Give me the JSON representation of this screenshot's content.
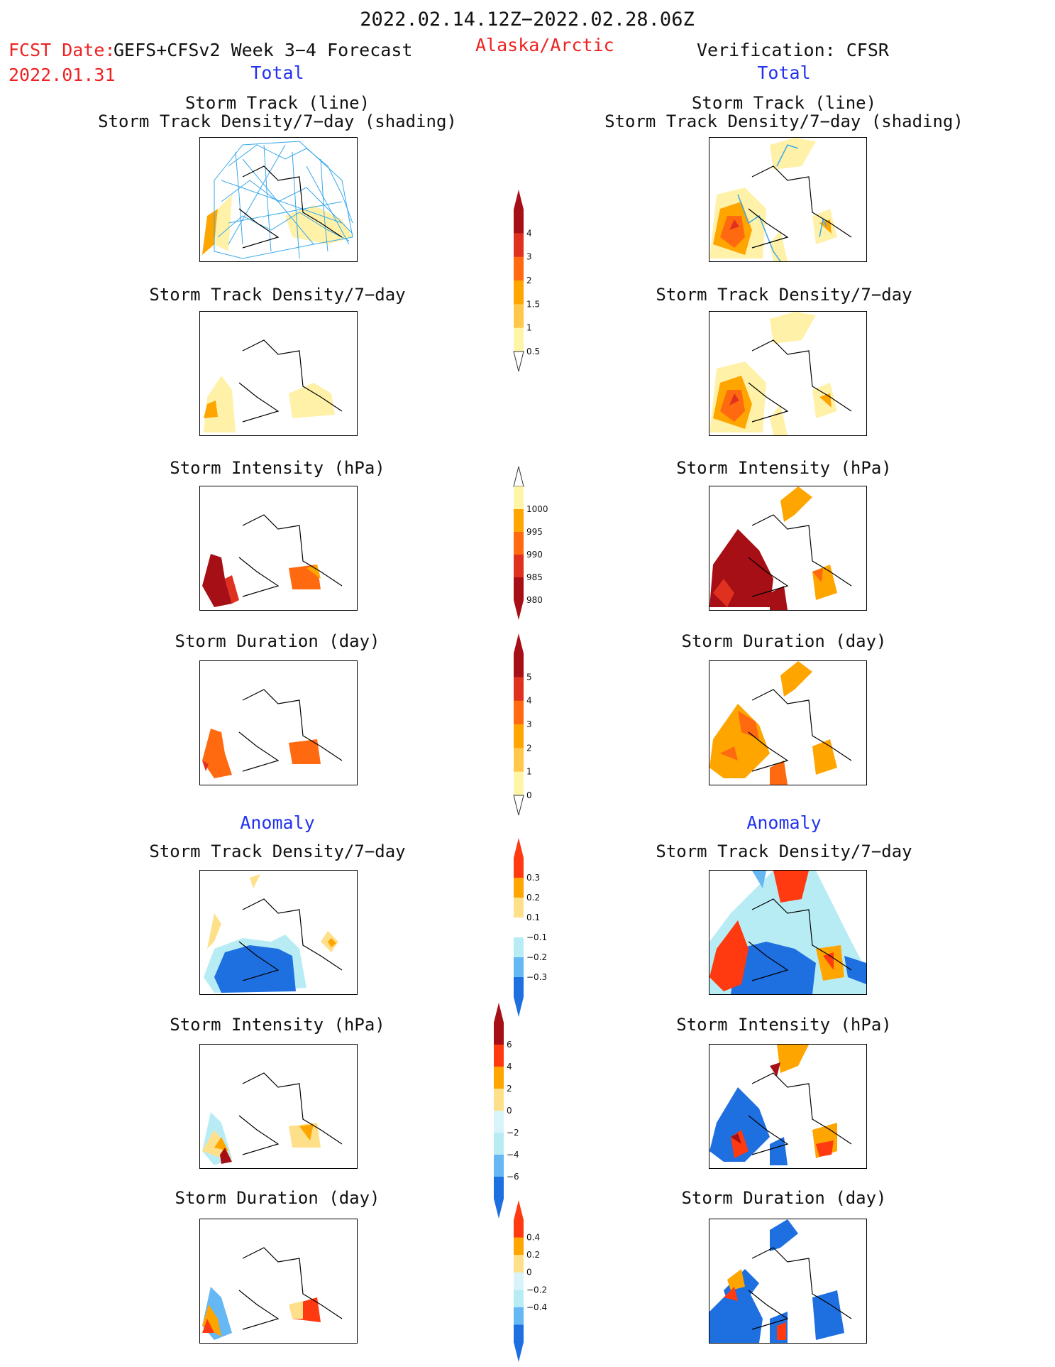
{
  "header": {
    "period": "2022.02.14.12Z−2022.02.28.06Z",
    "fcst_date_label": "FCST Date:",
    "fcst_model": "GEFS+CFSv2 Week 3−4 Forecast",
    "fcst_date": "2022.01.31",
    "region": "Alaska/Arctic",
    "verification": "Verification: CFSR"
  },
  "columns": {
    "left_total": "Total",
    "right_total": "Total",
    "left_anomaly": "Anomaly",
    "right_anomaly": "Anomaly"
  },
  "panel_titles": {
    "track_line": "Storm Track (line)",
    "track_shading": "Storm Track Density/7−day (shading)",
    "density": "Storm Track Density/7−day",
    "intensity": "Storm Intensity (hPa)",
    "duration": "Storm Duration (day)"
  },
  "colorbars": {
    "density_total": {
      "labels": [
        "4",
        "3",
        "2",
        "1.5",
        "1",
        "0.5"
      ],
      "colors": [
        "#a50f15",
        "#e03020",
        "#ff6a10",
        "#ffa500",
        "#ffc84a",
        "#fff5a8"
      ]
    },
    "intensity_total": {
      "labels": [
        "1000",
        "995",
        "990",
        "985",
        "980"
      ],
      "colors": [
        "#fff5a8",
        "#ffa500",
        "#ff6a10",
        "#e03020",
        "#a50f15"
      ]
    },
    "duration_total": {
      "labels": [
        "5",
        "4",
        "3",
        "2",
        "1",
        "0"
      ],
      "colors": [
        "#a50f15",
        "#e03020",
        "#ff6a10",
        "#ffa500",
        "#ffc84a",
        "#fff5a8"
      ]
    },
    "density_anom": {
      "labels": [
        "0.3",
        "0.2",
        "0.1",
        "−0.1",
        "−0.2",
        "−0.3"
      ],
      "colors": [
        "#ff3a10",
        "#ffa500",
        "#ffe08a",
        "#ffffff",
        "#b8ecf5",
        "#66b8f5",
        "#1e6fe0"
      ]
    },
    "intensity_anom": {
      "labels": [
        "6",
        "4",
        "2",
        "0",
        "−2",
        "−4",
        "−6"
      ],
      "colors": [
        "#a50f15",
        "#ff3a10",
        "#ffa500",
        "#ffe08a",
        "#d8f4fa",
        "#b8ecf5",
        "#66b8f5",
        "#1e6fe0"
      ]
    },
    "duration_anom": {
      "labels": [
        "0.4",
        "0.2",
        "0",
        "−0.2",
        "−0.4"
      ],
      "colors": [
        "#ff3a10",
        "#ffa500",
        "#ffe08a",
        "#d8f4fa",
        "#b8ecf5",
        "#66b8f5",
        "#1e6fe0"
      ]
    }
  }
}
